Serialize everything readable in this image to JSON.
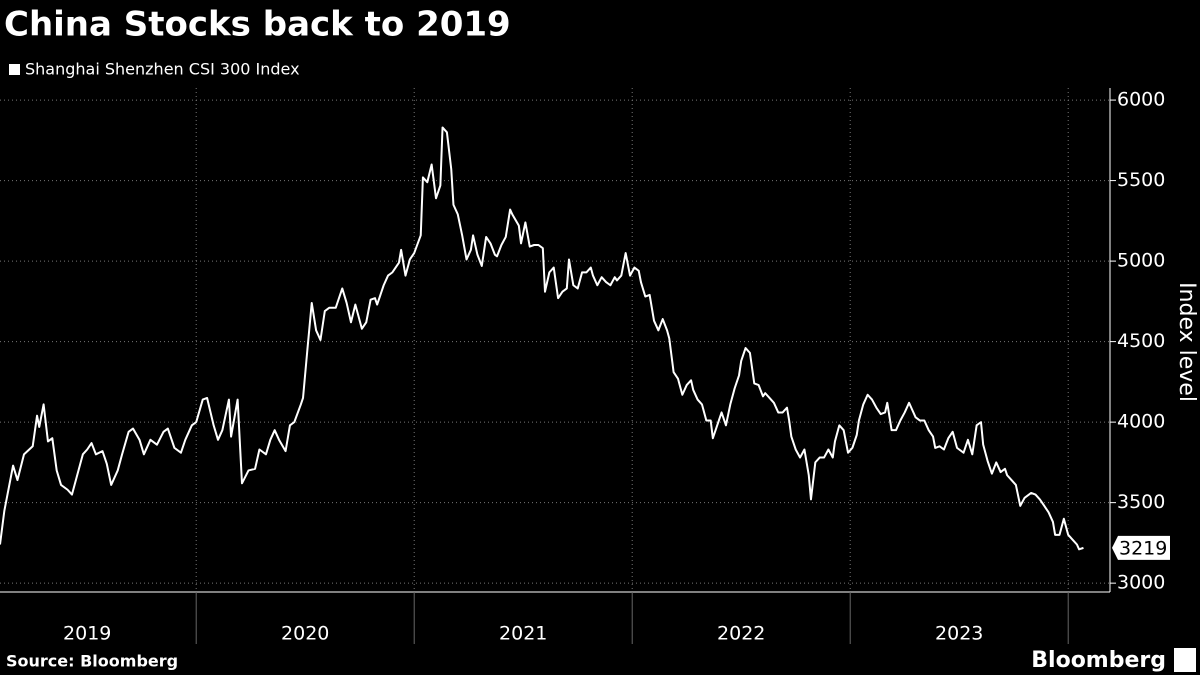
{
  "chart_data": {
    "type": "line",
    "title": "China Stocks back to 2019",
    "source": "Source: Bloomberg",
    "brand": "Bloomberg",
    "y_label": "Index level",
    "grid": true,
    "ylim": [
      2945,
      6075
    ],
    "yticks": [
      3000,
      3500,
      4000,
      4500,
      5000,
      5500,
      6000
    ],
    "xlim": [
      2019.1,
      2024.1
    ],
    "xticks": [
      {
        "value": 2019,
        "label": "2019"
      },
      {
        "value": 2020,
        "label": "2020"
      },
      {
        "value": 2021,
        "label": "2021"
      },
      {
        "value": 2022,
        "label": "2022"
      },
      {
        "value": 2023,
        "label": "2023"
      },
      {
        "value": 2024,
        "label": ""
      }
    ],
    "x": [
      2019.1,
      2019.12,
      2019.16,
      2019.18,
      2019.21,
      2019.25,
      2019.27,
      2019.28,
      2019.3,
      2019.32,
      2019.34,
      2019.36,
      2019.38,
      2019.41,
      2019.43,
      2019.45,
      2019.48,
      2019.5,
      2019.52,
      2019.54,
      2019.57,
      2019.59,
      2019.61,
      2019.64,
      2019.66,
      2019.69,
      2019.71,
      2019.74,
      2019.76,
      2019.79,
      2019.82,
      2019.85,
      2019.87,
      2019.9,
      2019.93,
      2019.95,
      2019.98,
      2020.0,
      2020.03,
      2020.05,
      2020.08,
      2020.1,
      2020.12,
      2020.15,
      2020.16,
      2020.19,
      2020.21,
      2020.24,
      2020.27,
      2020.29,
      2020.32,
      2020.34,
      2020.36,
      2020.38,
      2020.41,
      2020.43,
      2020.45,
      2020.48,
      2020.49,
      2020.51,
      2020.53,
      2020.55,
      2020.57,
      2020.59,
      2020.61,
      2020.64,
      2020.67,
      2020.69,
      2020.71,
      2020.73,
      2020.76,
      2020.78,
      2020.8,
      2020.82,
      2020.83,
      2020.86,
      2020.88,
      2020.9,
      2020.93,
      2020.94,
      2020.96,
      2020.98,
      2021.0,
      2021.03,
      2021.04,
      2021.06,
      2021.08,
      2021.1,
      2021.12,
      2021.13,
      2021.15,
      2021.17,
      2021.18,
      2021.2,
      2021.22,
      2021.24,
      2021.26,
      2021.27,
      2021.29,
      2021.31,
      2021.33,
      2021.35,
      2021.37,
      2021.38,
      2021.4,
      2021.42,
      2021.44,
      2021.45,
      2021.48,
      2021.49,
      2021.51,
      2021.53,
      2021.55,
      2021.57,
      2021.59,
      2021.6,
      2021.62,
      2021.64,
      2021.66,
      2021.68,
      2021.7,
      2021.71,
      2021.73,
      2021.75,
      2021.77,
      2021.79,
      2021.81,
      2021.82,
      2021.84,
      2021.86,
      2021.88,
      2021.9,
      2021.92,
      2021.93,
      2021.95,
      2021.97,
      2021.99,
      2022.01,
      2022.03,
      2022.04,
      2022.06,
      2022.08,
      2022.1,
      2022.12,
      2022.14,
      2022.16,
      2022.17,
      2022.19,
      2022.21,
      2022.23,
      2022.25,
      2022.27,
      2022.28,
      2022.3,
      2022.32,
      2022.34,
      2022.36,
      2022.37,
      2022.39,
      2022.41,
      2022.43,
      2022.45,
      2022.47,
      2022.49,
      2022.5,
      2022.52,
      2022.54,
      2022.56,
      2022.58,
      2022.6,
      2022.61,
      2022.63,
      2022.65,
      2022.67,
      2022.69,
      2022.71,
      2022.72,
      2022.73,
      2022.75,
      2022.77,
      2022.79,
      2022.81,
      2022.82,
      2022.84,
      2022.86,
      2022.88,
      2022.9,
      2022.92,
      2022.93,
      2022.95,
      2022.97,
      2022.99,
      2023.01,
      2023.03,
      2023.04,
      2023.06,
      2023.08,
      2023.1,
      2023.12,
      2023.14,
      2023.16,
      2023.17,
      2023.19,
      2023.21,
      2023.23,
      2023.25,
      2023.27,
      2023.28,
      2023.3,
      2023.32,
      2023.34,
      2023.36,
      2023.38,
      2023.39,
      2023.41,
      2023.43,
      2023.45,
      2023.47,
      2023.49,
      2023.5,
      2023.52,
      2023.54,
      2023.56,
      2023.58,
      2023.6,
      2023.61,
      2023.63,
      2023.65,
      2023.67,
      2023.69,
      2023.71,
      2023.72,
      2023.74,
      2023.76,
      2023.78,
      2023.8,
      2023.82,
      2023.83,
      2023.85,
      2023.87,
      2023.89,
      2023.91,
      2023.93,
      2023.94,
      2023.96,
      2023.98,
      2024.0,
      2024.02,
      2024.04,
      2024.05,
      2024.07
    ],
    "series": [
      {
        "name": "Shanghai Shenzhen CSI 300 Index",
        "color": "#ffffff",
        "values": [
          3240,
          3450,
          3730,
          3640,
          3800,
          3850,
          4040,
          3970,
          4110,
          3880,
          3900,
          3700,
          3610,
          3580,
          3550,
          3650,
          3800,
          3830,
          3870,
          3800,
          3820,
          3740,
          3610,
          3700,
          3800,
          3940,
          3960,
          3890,
          3800,
          3890,
          3860,
          3940,
          3960,
          3840,
          3810,
          3890,
          3980,
          4000,
          4140,
          4150,
          3980,
          3890,
          3950,
          4140,
          3910,
          4140,
          3620,
          3700,
          3710,
          3830,
          3800,
          3890,
          3950,
          3890,
          3820,
          3980,
          4000,
          4110,
          4150,
          4450,
          4740,
          4570,
          4510,
          4690,
          4710,
          4710,
          4830,
          4740,
          4620,
          4730,
          4580,
          4620,
          4760,
          4770,
          4730,
          4850,
          4910,
          4930,
          4990,
          5070,
          4910,
          5010,
          5050,
          5160,
          5520,
          5490,
          5600,
          5390,
          5470,
          5830,
          5800,
          5570,
          5350,
          5290,
          5160,
          5010,
          5070,
          5160,
          5040,
          4970,
          5150,
          5110,
          5040,
          5030,
          5100,
          5150,
          5320,
          5290,
          5220,
          5110,
          5240,
          5090,
          5100,
          5100,
          5080,
          4810,
          4930,
          4960,
          4770,
          4810,
          4830,
          5010,
          4850,
          4830,
          4930,
          4930,
          4960,
          4910,
          4850,
          4900,
          4870,
          4850,
          4900,
          4880,
          4910,
          5050,
          4910,
          4960,
          4940,
          4870,
          4780,
          4790,
          4630,
          4570,
          4640,
          4570,
          4520,
          4310,
          4270,
          4170,
          4230,
          4260,
          4200,
          4140,
          4110,
          4010,
          4010,
          3900,
          3980,
          4060,
          3980,
          4110,
          4210,
          4290,
          4380,
          4460,
          4430,
          4240,
          4230,
          4160,
          4180,
          4150,
          4120,
          4060,
          4060,
          4090,
          4010,
          3910,
          3830,
          3780,
          3830,
          3670,
          3520,
          3750,
          3780,
          3780,
          3830,
          3780,
          3880,
          3980,
          3950,
          3810,
          3840,
          3920,
          4010,
          4110,
          4170,
          4140,
          4090,
          4050,
          4060,
          4120,
          3950,
          3950,
          4010,
          4060,
          4120,
          4090,
          4030,
          4010,
          4010,
          3950,
          3910,
          3840,
          3850,
          3830,
          3900,
          3940,
          3840,
          3830,
          3810,
          3890,
          3800,
          3980,
          4000,
          3860,
          3760,
          3680,
          3750,
          3690,
          3710,
          3670,
          3640,
          3610,
          3480,
          3530,
          3550,
          3560,
          3550,
          3520,
          3480,
          3440,
          3380,
          3300,
          3300,
          3400,
          3300,
          3270,
          3240,
          3210,
          3219
        ]
      }
    ]
  }
}
